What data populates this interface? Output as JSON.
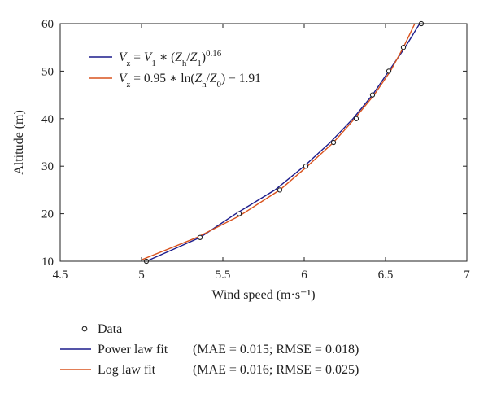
{
  "chart_data": {
    "type": "scatter",
    "xlabel": "Wind speed (m·s⁻¹)",
    "ylabel": "Altitude (m)",
    "xlim": [
      4.5,
      7
    ],
    "ylim": [
      10,
      60
    ],
    "xticks": [
      "4.5",
      "5",
      "5.5",
      "6",
      "6.5",
      "7"
    ],
    "yticks": [
      "10",
      "20",
      "30",
      "40",
      "50",
      "60"
    ],
    "grid": false,
    "series": [
      {
        "name": "Data",
        "kind": "markers",
        "color": "#222222",
        "points": [
          [
            5.03,
            10
          ],
          [
            5.36,
            15
          ],
          [
            5.6,
            20
          ],
          [
            5.85,
            25
          ],
          [
            6.01,
            30
          ],
          [
            6.18,
            35
          ],
          [
            6.32,
            40
          ],
          [
            6.42,
            45
          ],
          [
            6.52,
            50
          ],
          [
            6.61,
            55
          ],
          [
            6.72,
            60
          ]
        ]
      },
      {
        "name": "Power law fit",
        "kind": "line",
        "color": "#1c1c8c",
        "stats": "(MAE = 0.015; RMSE = 0.018)",
        "points": [
          [
            5.03,
            10
          ],
          [
            5.36,
            15
          ],
          [
            5.58,
            20
          ],
          [
            5.82,
            25
          ],
          [
            6.0,
            30
          ],
          [
            6.16,
            35
          ],
          [
            6.3,
            40
          ],
          [
            6.42,
            45
          ],
          [
            6.52,
            50
          ],
          [
            6.62,
            55
          ],
          [
            6.71,
            60
          ]
        ]
      },
      {
        "name": "Log law fit",
        "kind": "line",
        "color": "#d9531e",
        "stats": "(MAE = 0.016; RMSE = 0.025)",
        "points": [
          [
            5.0,
            10.3
          ],
          [
            5.34,
            15
          ],
          [
            5.6,
            19.5
          ],
          [
            5.85,
            25
          ],
          [
            6.02,
            30
          ],
          [
            6.18,
            35
          ],
          [
            6.31,
            40
          ],
          [
            6.43,
            45
          ],
          [
            6.53,
            50
          ],
          [
            6.61,
            55
          ],
          [
            6.68,
            60
          ]
        ]
      }
    ],
    "equations": [
      {
        "series": "Power law fit",
        "color": "#1c1c8c",
        "parts": [
          {
            "t": "V",
            "i": true
          },
          {
            "t": "z",
            "sub": true
          },
          {
            "t": " = "
          },
          {
            "t": "V",
            "i": true
          },
          {
            "t": "1",
            "sub": true
          },
          {
            "t": " ∗ ("
          },
          {
            "t": "Z",
            "i": true
          },
          {
            "t": "h",
            "sub": true
          },
          {
            "t": "/"
          },
          {
            "t": "Z",
            "i": true
          },
          {
            "t": "1",
            "sub": true
          },
          {
            "t": ")"
          },
          {
            "t": "0.16",
            "sup": true
          }
        ]
      },
      {
        "series": "Log law fit",
        "color": "#d9531e",
        "parts": [
          {
            "t": "V",
            "i": true
          },
          {
            "t": "z",
            "sub": true
          },
          {
            "t": " = 0.95 ∗ ln("
          },
          {
            "t": "Z",
            "i": true
          },
          {
            "t": "h",
            "sub": true
          },
          {
            "t": "/"
          },
          {
            "t": "Z",
            "i": true
          },
          {
            "t": "0",
            "sub": true
          },
          {
            "t": ") − 1.91"
          }
        ]
      }
    ]
  }
}
